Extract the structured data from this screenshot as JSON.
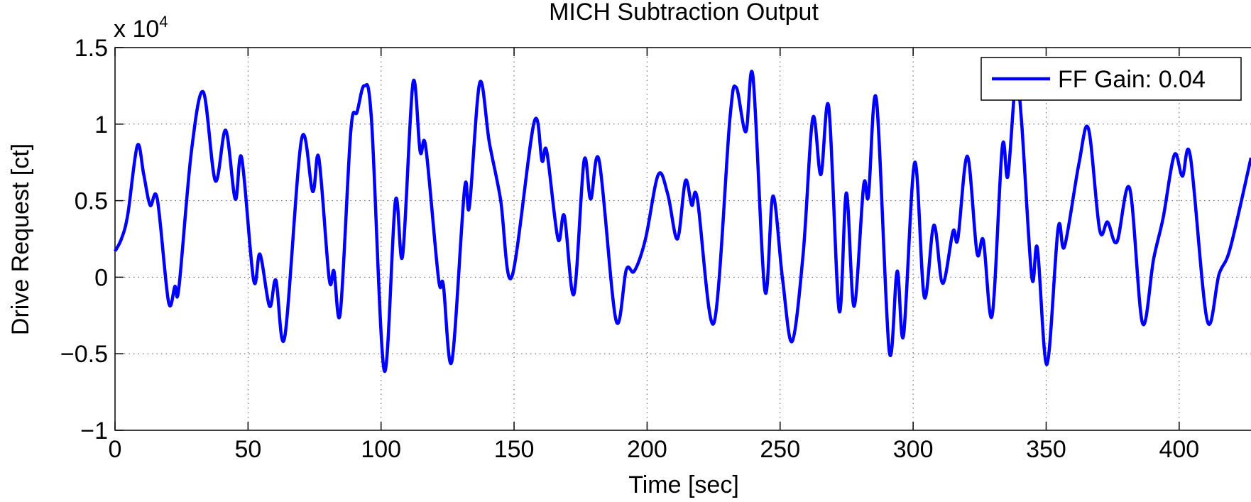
{
  "chart_data": {
    "type": "line",
    "title": "MICH Subtraction Output",
    "x_label": "Time [sec]",
    "y_label": "Drive Request [ct]",
    "y_multiplier_base": "x 10",
    "y_multiplier_exponent": "4",
    "x": [
      0,
      2.4,
      4.8,
      8.4,
      10.8,
      13.2,
      15.9,
      20.1,
      22.5,
      24,
      28.7,
      33.2,
      37.7,
      41.6,
      45.2,
      47.6,
      52.1,
      54.5,
      58.1,
      60.5,
      63.8,
      70.1,
      74.3,
      76.6,
      80.5,
      82.3,
      84.7,
      88.6,
      91,
      93.7,
      96.4,
      101.2,
      105.4,
      108.1,
      112,
      114.7,
      116.8,
      121.6,
      123.4,
      126.6,
      131.4,
      133.2,
      137.1,
      140.7,
      144.9,
      149.1,
      157.5,
      160.5,
      162.3,
      166.5,
      168.9,
      172.5,
      176.3,
      178.8,
      182,
      188.3,
      192.2,
      195.2,
      199.4,
      204.2,
      207.8,
      211.4,
      214.4,
      216.8,
      218.9,
      225.1,
      231.1,
      233.5,
      237.1,
      239.8,
      244.3,
      247.3,
      250.9,
      254.5,
      258.7,
      262.3,
      265.3,
      268.3,
      272.2,
      274.9,
      277.8,
      281.4,
      283.2,
      286.2,
      291,
      294,
      296.4,
      300.6,
      304.2,
      307.8,
      311.1,
      315,
      316.8,
      320.4,
      324,
      326.4,
      329.7,
      333.5,
      335.6,
      338.6,
      340.7,
      344.6,
      346.7,
      350.3,
      354.5,
      356.9,
      362.3,
      365.9,
      370.1,
      373.1,
      376.6,
      381.4,
      386.2,
      390.4,
      394,
      398.2,
      401.2,
      404.2,
      410.5,
      415,
      419.2,
      427
    ],
    "series": [
      {
        "name": "FF Gain: 0.04",
        "color": "#0000ff",
        "values": [
          0.17,
          0.25,
          0.41,
          0.86,
          0.67,
          0.47,
          0.51,
          -0.16,
          -0.06,
          -0.07,
          0.82,
          1.21,
          0.63,
          0.96,
          0.51,
          0.78,
          -0.02,
          0.15,
          -0.19,
          -0.02,
          -0.39,
          0.9,
          0.56,
          0.78,
          -0.01,
          0.04,
          -0.23,
          0.95,
          1.08,
          1.25,
          1.03,
          -0.61,
          0.5,
          0.14,
          1.27,
          0.82,
          0.85,
          -0.01,
          -0.05,
          -0.55,
          0.58,
          0.46,
          1.27,
          0.88,
          0.51,
          0,
          1.01,
          0.76,
          0.82,
          0.25,
          0.4,
          -0.11,
          0.76,
          0.51,
          0.76,
          -0.28,
          0.05,
          0.04,
          0.25,
          0.67,
          0.54,
          0.25,
          0.63,
          0.47,
          0.51,
          -0.3,
          1.03,
          1.24,
          0.95,
          1.31,
          -0.09,
          0.53,
          -0.01,
          -0.42,
          0.16,
          1.04,
          0.67,
          1.11,
          -0.22,
          0.55,
          -0.19,
          0.6,
          0.53,
          1.16,
          -0.48,
          0.04,
          -0.38,
          0.75,
          -0.13,
          0.34,
          -0.04,
          0.3,
          0.25,
          0.79,
          0.16,
          0.24,
          -0.25,
          0.85,
          0.66,
          1.29,
          1.03,
          0,
          0.19,
          -0.57,
          0.32,
          0.2,
          0.74,
          0.97,
          0.31,
          0.36,
          0.23,
          0.58,
          -0.3,
          0.12,
          0.39,
          0.8,
          0.66,
          0.79,
          -0.28,
          0.02,
          0.19,
          0.78
        ]
      }
    ],
    "xlim": [
      0,
      427
    ],
    "ylim": [
      -1,
      1.5
    ],
    "xticks": [
      0,
      50,
      100,
      150,
      200,
      250,
      300,
      350,
      400
    ],
    "yticks": [
      {
        "value": -1,
        "label": "−1"
      },
      {
        "value": -0.5,
        "label": "−0.5"
      },
      0,
      0.5,
      1,
      1.5
    ],
    "grid": true,
    "legend": "upper right"
  }
}
